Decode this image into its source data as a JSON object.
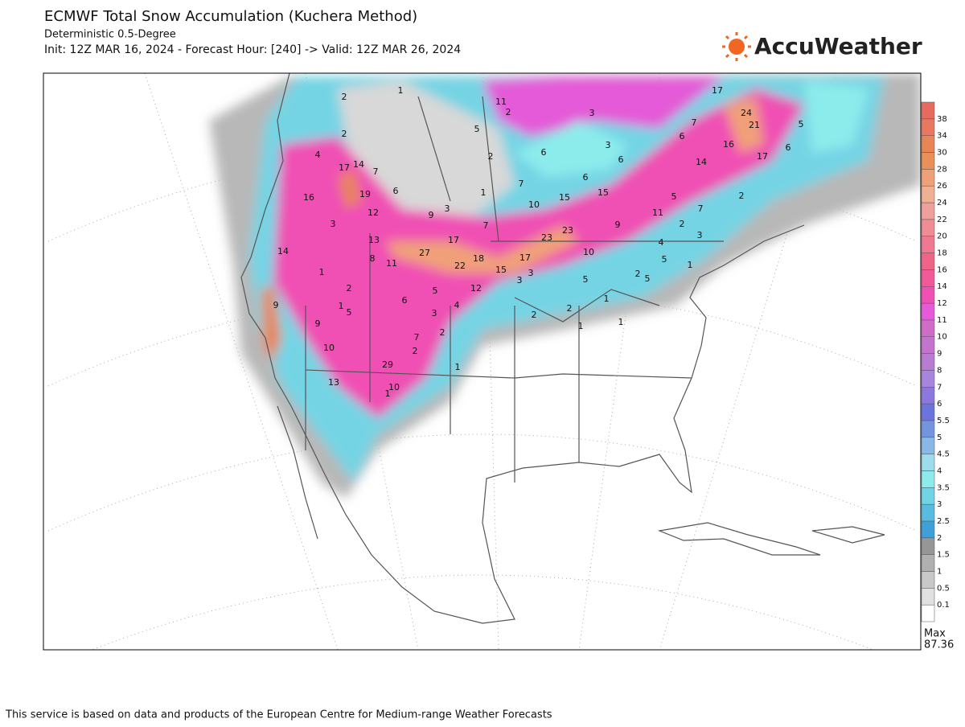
{
  "header": {
    "title": "ECMWF Total Snow Accumulation (Kuchera Method)",
    "subtitle": "Deterministic 0.5-Degree",
    "init_line": "Init: 12Z MAR 16, 2024 - Forecast Hour: [240] -> Valid: 12Z MAR 26, 2024",
    "logo": "AccuWeather"
  },
  "legend": {
    "levels": [
      0.1,
      0.5,
      1,
      1.5,
      2,
      2.5,
      3,
      3.5,
      4,
      4.5,
      5,
      5.5,
      6,
      7,
      8,
      9,
      10,
      11,
      12,
      14,
      16,
      18,
      20,
      22,
      24,
      26,
      28,
      30,
      34,
      38
    ],
    "colors": [
      "#ffffff",
      "#e0e0e0",
      "#c8c8c8",
      "#b0b0b0",
      "#969696",
      "#3ea0d8",
      "#58bce0",
      "#70d4e4",
      "#8cecec",
      "#9cdcec",
      "#88b8e8",
      "#7494e0",
      "#6a74dc",
      "#8c78dc",
      "#a884dc",
      "#b87cd4",
      "#c474cc",
      "#d06cc8",
      "#e45ad8",
      "#f050b4",
      "#f05a98",
      "#f06488",
      "#f07890",
      "#f08c94",
      "#f0a09c",
      "#f0b094",
      "#f0a078",
      "#e89058",
      "#e88458",
      "#e87860",
      "#e86a5e"
    ],
    "max_label": "Max",
    "max_value": 87.36
  },
  "map_labels": [
    2,
    1,
    11,
    2,
    5,
    3,
    3,
    17,
    7,
    6,
    24,
    21,
    5,
    6,
    16,
    17,
    14,
    2,
    4,
    17,
    14,
    7,
    16,
    19,
    6,
    2,
    6,
    6,
    6,
    7,
    15,
    15,
    10,
    5,
    2,
    12,
    3,
    9,
    1,
    11,
    7,
    2,
    7,
    3,
    9,
    3,
    23,
    23,
    17,
    13,
    4,
    14,
    27,
    10,
    18,
    17,
    8,
    11,
    22,
    15,
    5,
    1,
    1,
    3,
    3,
    2,
    5,
    5,
    2,
    12,
    5,
    9,
    6,
    4,
    1,
    1,
    5,
    3,
    2,
    2,
    9,
    1,
    1,
    2,
    7,
    10,
    2,
    29,
    1,
    10,
    1,
    13
  ],
  "footer": "This service is based on data and products of the European Centre for Medium-range Weather Forecasts"
}
